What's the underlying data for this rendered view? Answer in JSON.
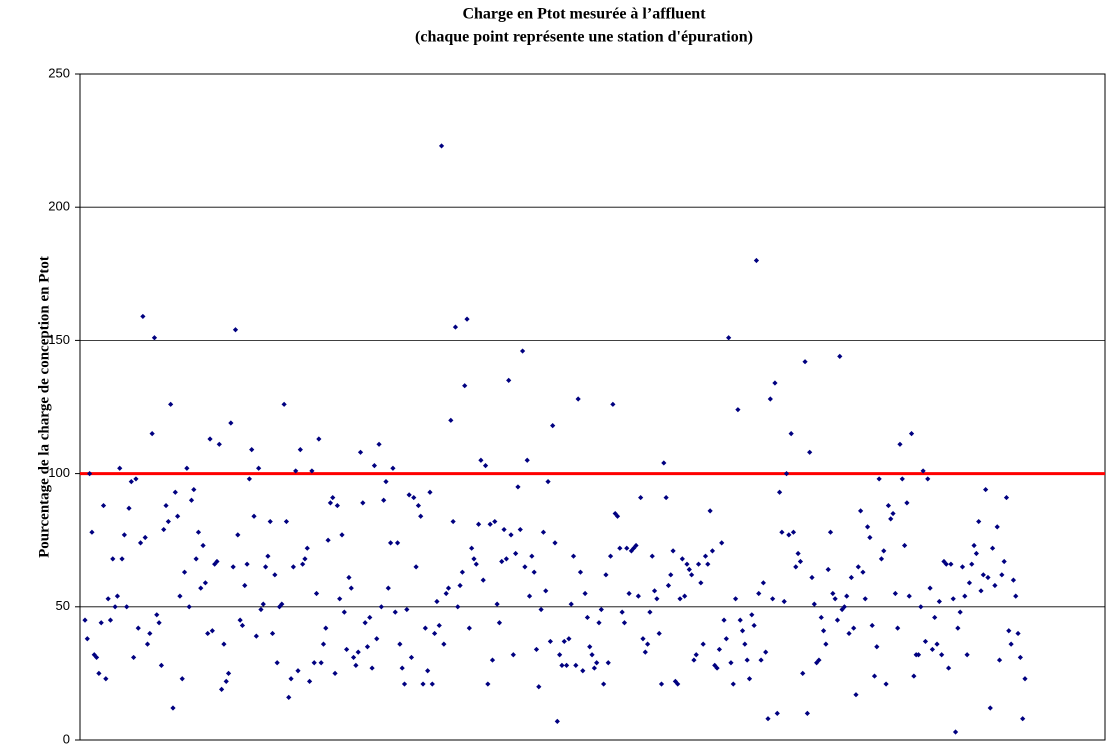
{
  "chart_data": {
    "type": "scatter",
    "title": "Charge  en Ptot mesurée à l’affluent",
    "subtitle": "(chaque point représente une station d'épuration)",
    "y_label": "Pourcentage de la charge de conception en Ptot",
    "ylim": [
      0,
      250
    ],
    "yticks": [
      0,
      50,
      100,
      150,
      200,
      250
    ],
    "grid": true,
    "color": "#000080",
    "reference_line": {
      "value": 100,
      "color": "#ff0000"
    },
    "values": [
      45,
      38,
      100,
      78,
      32,
      31,
      25,
      44,
      88,
      23,
      53,
      45,
      68,
      50,
      54,
      102,
      68,
      77,
      50,
      87,
      97,
      31,
      98,
      42,
      74,
      159,
      76,
      36,
      40,
      115,
      151,
      47,
      44,
      28,
      79,
      88,
      82,
      126,
      12,
      93,
      84,
      54,
      23,
      63,
      102,
      50,
      90,
      94,
      68,
      78,
      57,
      73,
      59,
      40,
      113,
      41,
      66,
      67,
      111,
      19,
      36,
      22,
      25,
      119,
      65,
      154,
      77,
      45,
      43,
      58,
      66,
      98,
      109,
      84,
      39,
      102,
      49,
      51,
      65,
      69,
      82,
      40,
      62,
      29,
      50,
      51,
      126,
      82,
      16,
      23,
      65,
      101,
      26,
      109,
      66,
      68,
      72,
      22,
      101,
      29,
      55,
      113,
      29,
      36,
      42,
      75,
      89,
      91,
      25,
      88,
      53,
      77,
      48,
      34,
      61,
      57,
      31,
      28,
      33,
      108,
      89,
      44,
      35,
      46,
      27,
      103,
      38,
      111,
      50,
      90,
      97,
      57,
      74,
      102,
      48,
      74,
      36,
      27,
      21,
      49,
      92,
      31,
      91,
      65,
      88,
      84,
      21,
      42,
      26,
      93,
      21,
      40,
      52,
      43,
      223,
      36,
      55,
      57,
      120,
      82,
      155,
      50,
      58,
      63,
      133,
      158,
      42,
      72,
      68,
      66,
      81,
      105,
      60,
      103,
      21,
      81,
      30,
      82,
      51,
      44,
      67,
      79,
      68,
      135,
      77,
      32,
      70,
      95,
      79,
      146,
      65,
      105,
      54,
      69,
      63,
      34,
      20,
      49,
      78,
      56,
      97,
      37,
      118,
      74,
      7,
      32,
      28,
      37,
      28,
      38,
      51,
      69,
      28,
      128,
      63,
      26,
      55,
      46,
      35,
      32,
      27,
      29,
      44,
      49,
      21,
      62,
      29,
      69,
      126,
      85,
      84,
      72,
      48,
      44,
      72,
      55,
      71,
      72,
      73,
      54,
      91,
      38,
      33,
      36,
      48,
      69,
      56,
      53,
      40,
      21,
      104,
      91,
      58,
      62,
      71,
      22,
      21,
      53,
      68,
      54,
      66,
      64,
      62,
      30,
      32,
      66,
      59,
      36,
      69,
      66,
      86,
      71,
      28,
      27,
      34,
      74,
      45,
      38,
      151,
      29,
      21,
      53,
      124,
      45,
      41,
      36,
      30,
      23,
      47,
      43,
      180,
      55,
      30,
      59,
      33,
      8,
      128,
      53,
      134,
      10,
      93,
      78,
      52,
      100,
      77,
      115,
      78,
      65,
      70,
      67,
      25,
      142,
      10,
      108,
      61,
      51,
      29,
      30,
      46,
      41,
      36,
      64,
      78,
      55,
      53,
      45,
      144,
      49,
      50,
      54,
      40,
      61,
      42,
      17,
      65,
      86,
      63,
      53,
      80,
      76,
      43,
      24,
      35,
      98,
      68,
      71,
      21,
      88,
      83,
      85,
      55,
      42,
      111,
      98,
      73,
      89,
      54,
      115,
      24,
      32,
      32,
      50,
      101,
      37,
      98,
      57,
      34,
      46,
      36,
      52,
      32,
      67,
      66,
      27,
      66,
      53,
      3,
      42,
      48,
      65,
      54,
      32,
      59,
      66,
      73,
      70,
      82,
      56,
      62,
      94,
      61,
      12,
      72,
      58,
      80,
      30,
      62,
      67,
      91,
      41,
      36,
      60,
      54,
      40,
      31,
      8,
      23
    ]
  }
}
